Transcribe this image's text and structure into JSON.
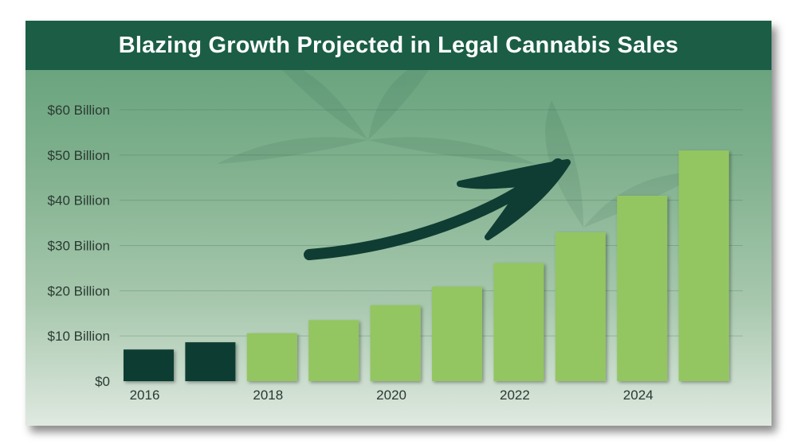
{
  "title": "Blazing Growth Projected in Legal Cannabis Sales",
  "colors": {
    "title_bar": "#1b5e45",
    "actual_bar": "#0f3d33",
    "projected_bar": "#93c660",
    "arrow": "#0f3d33"
  },
  "chart_data": {
    "type": "bar",
    "title": "Blazing Growth Projected in Legal Cannabis Sales",
    "xlabel": "",
    "ylabel": "",
    "ylim": [
      0,
      60
    ],
    "yticks": [
      0,
      10,
      20,
      30,
      40,
      50,
      60
    ],
    "ytick_labels": [
      "$0",
      "$10 Billion",
      "$20 Billion",
      "$30 Billion",
      "$40 Billion",
      "$50 Billion",
      "$60 Billion"
    ],
    "categories": [
      "2016",
      "2017",
      "2018",
      "2019",
      "2020",
      "2021",
      "2022",
      "2023",
      "2024",
      "2025"
    ],
    "xtick_labels": [
      "2016",
      "",
      "2018",
      "",
      "2020",
      "",
      "2022",
      "",
      "2024",
      ""
    ],
    "values": [
      7,
      8.6,
      10.6,
      13.5,
      16.8,
      20.9,
      26.1,
      32.9,
      41,
      51
    ],
    "bar_kind": [
      "actual",
      "actual",
      "projected",
      "projected",
      "projected",
      "projected",
      "projected",
      "projected",
      "projected",
      "projected"
    ],
    "grid": true,
    "annotation": "upward-trend-arrow"
  }
}
